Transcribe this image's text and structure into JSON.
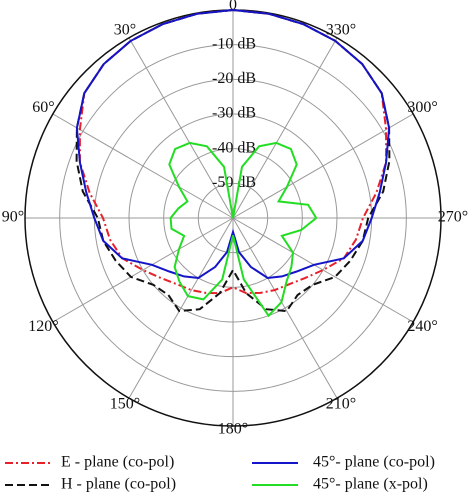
{
  "chart_data": {
    "type": "polar",
    "x": [
      0,
      10,
      20,
      30,
      40,
      50,
      60,
      70,
      80,
      90,
      100,
      110,
      120,
      130,
      140,
      150,
      160,
      170,
      180,
      190,
      200,
      210,
      220,
      230,
      240,
      250,
      260,
      270,
      280,
      290,
      300,
      310,
      320,
      330,
      340,
      350,
      360
    ],
    "rlim": [
      -60,
      0
    ],
    "rticks": [
      {
        "value": -10,
        "label": "-10 dB"
      },
      {
        "value": -20,
        "label": "-20 dB"
      },
      {
        "value": -30,
        "label": "-30 dB"
      },
      {
        "value": -40,
        "label": "-40 dB"
      },
      {
        "value": -50,
        "label": "-50 dB"
      }
    ],
    "xticks": [
      0,
      {
        "value": 30,
        "label": "30°"
      },
      {
        "value": 60,
        "label": "60°"
      },
      {
        "value": 90,
        "label": "90°"
      },
      {
        "value": 120,
        "label": "120°"
      },
      {
        "value": 150,
        "label": "150°"
      },
      {
        "value": 180,
        "label": "180°"
      },
      {
        "value": 210,
        "label": "210°"
      },
      {
        "value": 240,
        "label": "240°"
      },
      {
        "value": 270,
        "label": "270°"
      },
      {
        "value": 300,
        "label": "300°"
      },
      {
        "value": 330,
        "label": "330°"
      }
    ],
    "grid": true,
    "legend": "bottom",
    "series": [
      {
        "name": "E - plane (co-pol)",
        "color": "#e8202a",
        "linestyle": "dashdot",
        "values": [
          0,
          -0.2,
          -0.5,
          -1,
          -2,
          -4,
          -9,
          -13,
          -18,
          -22.5,
          -24,
          -26,
          -30,
          -33,
          -35,
          -36,
          -37,
          -38,
          -40,
          -38,
          -37,
          -36,
          -35,
          -33,
          -30,
          -26,
          -24,
          -22.5,
          -18,
          -13,
          -9,
          -4,
          -2,
          -1,
          -0.5,
          -0.2,
          0
        ]
      },
      {
        "name": "H - plane (co-pol)",
        "color": "#111111",
        "linestyle": "dashed",
        "values": [
          0,
          -0.2,
          -0.5,
          -1,
          -2,
          -4,
          -8,
          -12,
          -16,
          -21,
          -22,
          -24,
          -26,
          -30,
          -31,
          -29,
          -32,
          -38,
          -45,
          -38,
          -32,
          -29,
          -31,
          -30,
          -26,
          -24,
          -22,
          -21,
          -16,
          -12,
          -8,
          -4,
          -2,
          -1,
          -0.5,
          -0.2,
          0
        ]
      },
      {
        "name": "45°- plane (co-pol)",
        "color": "#1414c8",
        "linestyle": "solid",
        "values": [
          0,
          -0.2,
          -0.5,
          -1,
          -2,
          -4,
          -8,
          -13,
          -17,
          -20,
          -22,
          -26,
          -33,
          -36,
          -38,
          -40,
          -45,
          -50,
          -56,
          -50,
          -45,
          -40,
          -38,
          -36,
          -33,
          -26,
          -22,
          -20,
          -17,
          -13,
          -8,
          -4,
          -2,
          -1,
          -0.5,
          -0.2,
          0
        ]
      },
      {
        "name": "45°- plane (x-pol)",
        "color": "#22dd22",
        "linestyle": "solid",
        "values": [
          -60,
          -45,
          -38,
          -35,
          -34,
          -36,
          -42,
          -46,
          -44,
          -42,
          -42,
          -45,
          -42,
          -38,
          -36,
          -34,
          -35,
          -42,
          -55,
          -42,
          -30,
          -32,
          -36,
          -38,
          -40,
          -45,
          -40,
          -36,
          -38,
          -46,
          -42,
          -36,
          -34,
          -35,
          -38,
          -45,
          -60
        ]
      }
    ]
  }
}
